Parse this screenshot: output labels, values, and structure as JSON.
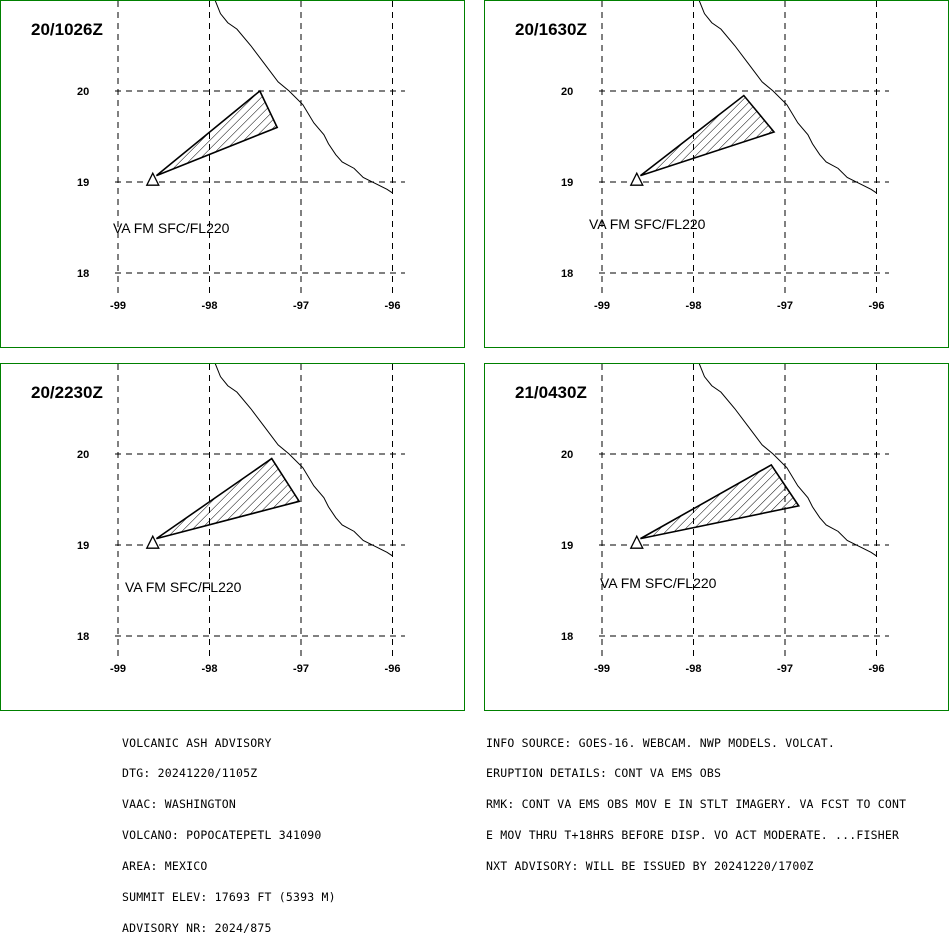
{
  "panels": [
    {
      "time": "20/1026Z",
      "va_label": "VA FM SFC/FL220",
      "plume": [
        [
          -98.58,
          19.07
        ],
        [
          -97.45,
          20.0
        ],
        [
          -97.26,
          19.6
        ]
      ]
    },
    {
      "time": "20/1630Z",
      "va_label": "VA FM SFC/FL220",
      "plume": [
        [
          -98.58,
          19.07
        ],
        [
          -97.45,
          19.95
        ],
        [
          -97.12,
          19.55
        ]
      ]
    },
    {
      "time": "20/2230Z",
      "va_label": "VA FM SFC/FL220",
      "plume": [
        [
          -98.58,
          19.07
        ],
        [
          -97.32,
          19.95
        ],
        [
          -97.02,
          19.48
        ]
      ]
    },
    {
      "time": "21/0430Z",
      "va_label": "VA FM SFC/FL220",
      "plume": [
        [
          -98.58,
          19.07
        ],
        [
          -97.15,
          19.88
        ],
        [
          -96.85,
          19.43
        ]
      ]
    }
  ],
  "volcano": {
    "lon": -98.62,
    "lat": 19.02
  },
  "axes": {
    "lon_ticks": [
      "-99",
      "-98",
      "-97",
      "-96"
    ],
    "lat_ticks": [
      "20",
      "19",
      "18"
    ]
  },
  "coastline": [
    [
      -97.94,
      21.0
    ],
    [
      -97.88,
      20.85
    ],
    [
      -97.8,
      20.75
    ],
    [
      -97.7,
      20.68
    ],
    [
      -97.55,
      20.5
    ],
    [
      -97.4,
      20.3
    ],
    [
      -97.25,
      20.1
    ],
    [
      -97.13,
      20.0
    ],
    [
      -96.98,
      19.85
    ],
    [
      -96.86,
      19.65
    ],
    [
      -96.75,
      19.52
    ],
    [
      -96.7,
      19.42
    ],
    [
      -96.62,
      19.3
    ],
    [
      -96.55,
      19.22
    ],
    [
      -96.42,
      19.15
    ],
    [
      -96.32,
      19.05
    ],
    [
      -96.18,
      18.98
    ],
    [
      -96.06,
      18.92
    ],
    [
      -96.0,
      18.88
    ]
  ],
  "advisory_left": [
    "VOLCANIC ASH ADVISORY",
    "DTG: 20241220/1105Z",
    "VAAC: WASHINGTON",
    "VOLCANO: POPOCATEPETL 341090",
    "AREA: MEXICO",
    "SUMMIT ELEV: 17693 FT (5393 M)",
    "ADVISORY NR: 2024/875"
  ],
  "advisory_right": [
    "INFO SOURCE: GOES-16. WEBCAM. NWP MODELS. VOLCAT.",
    "ERUPTION DETAILS: CONT VA EMS OBS",
    "RMK: CONT VA EMS OBS MOV E IN STLT IMAGERY. VA FCST TO CONT",
    "E MOV THRU T+18HRS BEFORE DISP. VO ACT MODERATE. ...FISHER",
    "NXT ADVISORY: WILL BE ISSUED BY 20241220/1700Z"
  ],
  "colors": {
    "panel_border": "#008000",
    "ink": "#000000",
    "background": "#ffffff"
  }
}
